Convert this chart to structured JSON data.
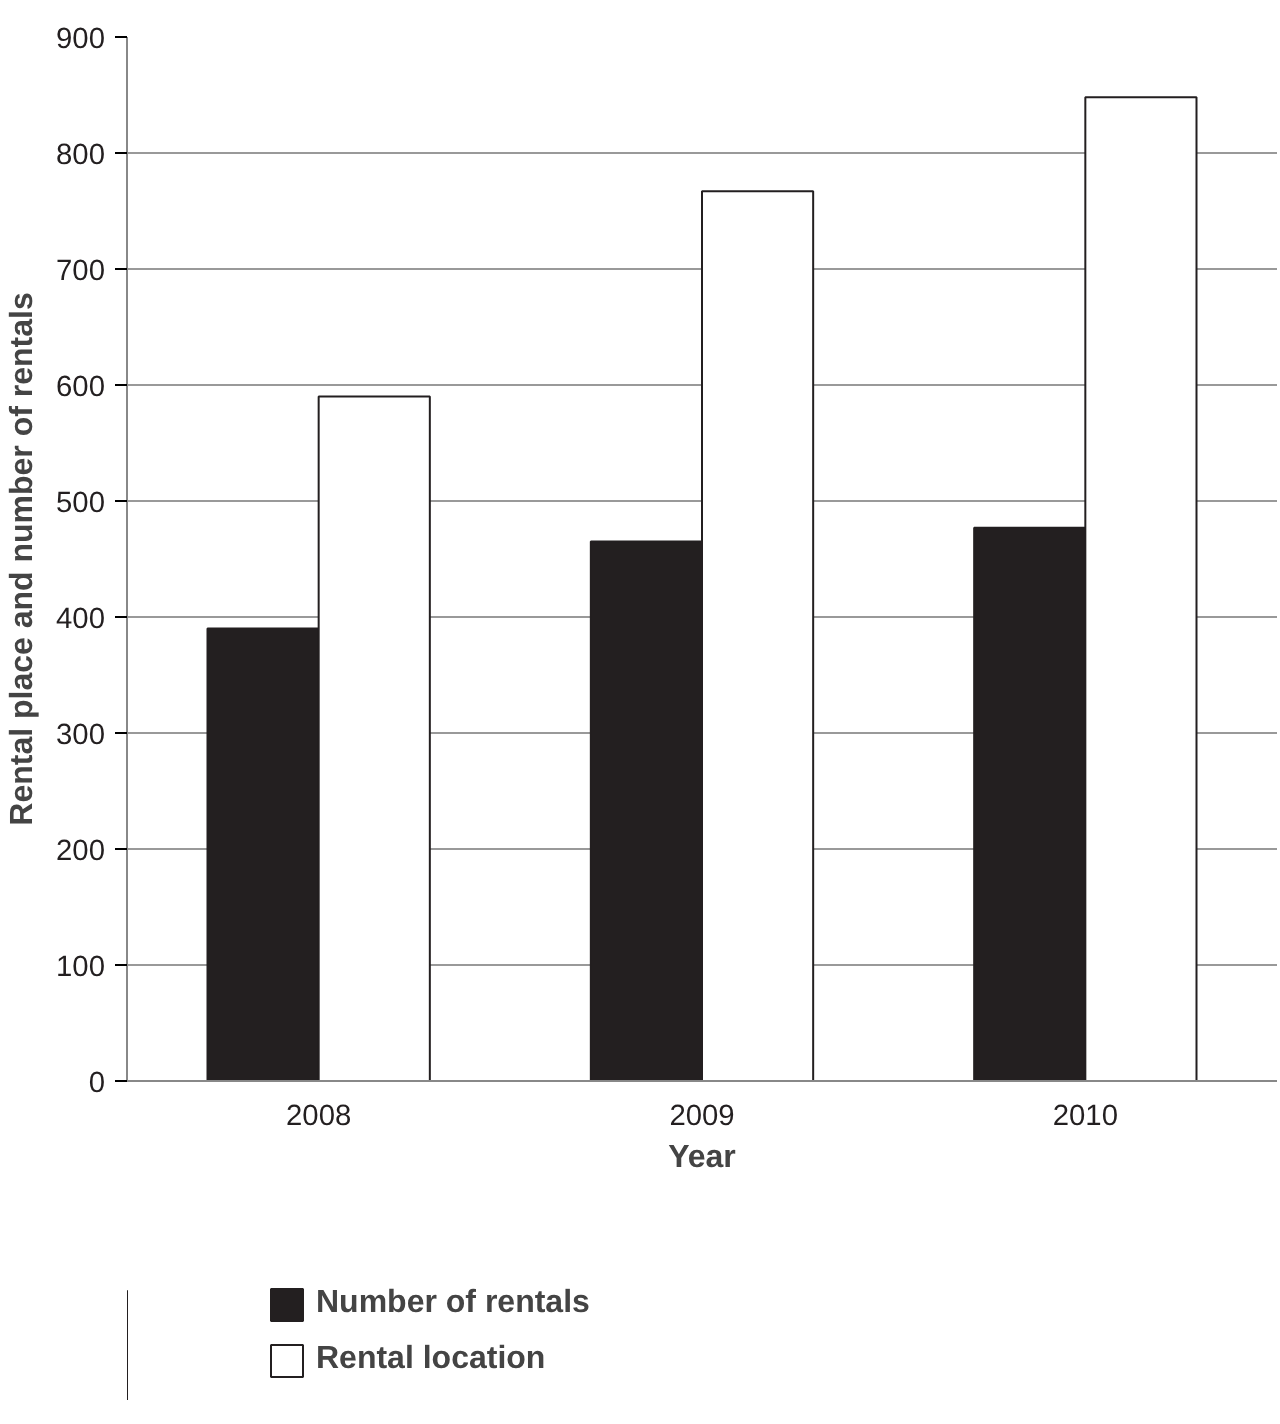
{
  "chart_data": {
    "type": "bar",
    "xlabel": "Year",
    "ylabel": "Rental place and number of rentals",
    "categories": [
      "2008",
      "2009",
      "2010"
    ],
    "series": [
      {
        "name": "Number of rentals",
        "color": "#231f20",
        "values": [
          390,
          465,
          477
        ]
      },
      {
        "name": "Rental location",
        "color": "#ffffff",
        "values": [
          590,
          767,
          848
        ]
      }
    ],
    "ylim": [
      0,
      900
    ],
    "yticks": [
      0,
      100,
      200,
      300,
      400,
      500,
      600,
      700,
      800,
      900
    ],
    "grid": "y",
    "legend": "bottom left"
  }
}
